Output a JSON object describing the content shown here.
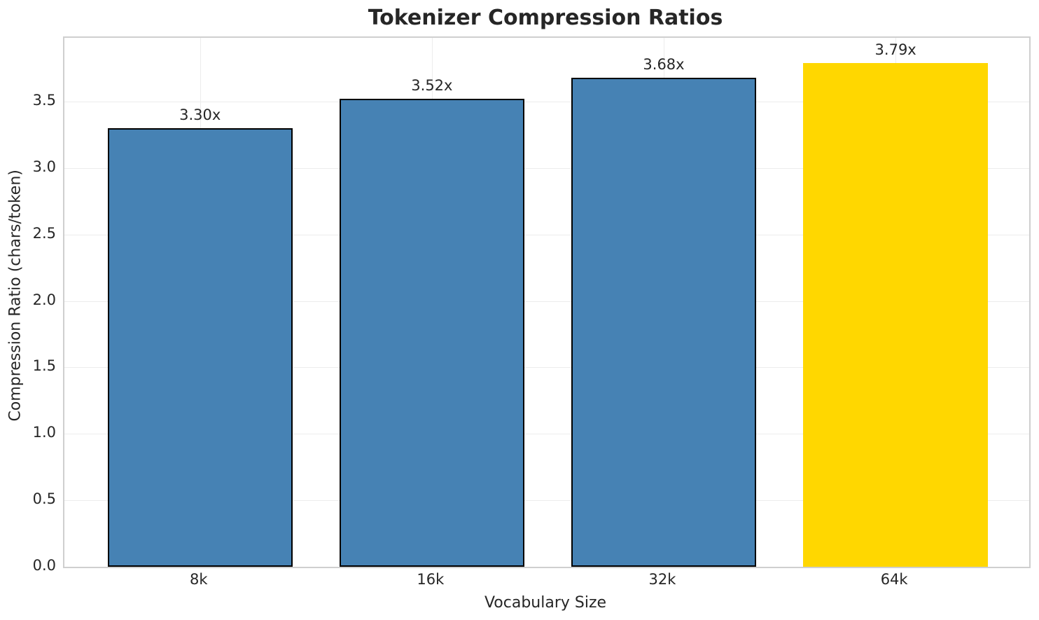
{
  "chart_data": {
    "type": "bar",
    "title": "Tokenizer Compression Ratios",
    "xlabel": "Vocabulary Size",
    "ylabel": "Compression Ratio (chars/token)",
    "categories": [
      "8k",
      "16k",
      "32k",
      "64k"
    ],
    "values": [
      3.3,
      3.52,
      3.68,
      3.79
    ],
    "bar_labels": [
      "3.30x",
      "3.52x",
      "3.68x",
      "3.79x"
    ],
    "bar_colors": [
      "#4682B4",
      "#4682B4",
      "#4682B4",
      "#FFD700"
    ],
    "bar_edge_colors": [
      "#000000",
      "#000000",
      "#000000",
      "none"
    ],
    "yticks": [
      0.0,
      0.5,
      1.0,
      1.5,
      2.0,
      2.5,
      3.0,
      3.5
    ],
    "ytick_labels": [
      "0.0",
      "0.5",
      "1.0",
      "1.5",
      "2.0",
      "2.5",
      "3.0",
      "3.5"
    ],
    "ylim": [
      0,
      3.98
    ],
    "grid": true,
    "grid_axes": "both",
    "legend": false,
    "highlight_category": "64k"
  }
}
